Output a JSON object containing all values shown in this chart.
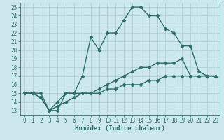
{
  "xlabel": "Humidex (Indice chaleur)",
  "bg_color": "#cce8ec",
  "line_color": "#2d6e6a",
  "grid_color": "#aaccd0",
  "xlim": [
    -0.5,
    23.5
  ],
  "ylim": [
    12.5,
    25.5
  ],
  "xticks": [
    0,
    1,
    2,
    3,
    4,
    5,
    6,
    7,
    8,
    9,
    10,
    11,
    12,
    13,
    14,
    15,
    16,
    17,
    18,
    19,
    20,
    21,
    22,
    23
  ],
  "yticks": [
    13,
    14,
    15,
    16,
    17,
    18,
    19,
    20,
    21,
    22,
    23,
    24,
    25
  ],
  "line1_x": [
    0,
    1,
    2,
    3,
    4,
    5,
    6,
    7,
    8,
    9,
    10,
    11,
    12,
    13,
    14,
    15,
    16,
    17,
    18,
    19,
    20,
    21,
    22,
    23
  ],
  "line1_y": [
    15,
    15,
    15,
    13,
    14,
    15,
    15,
    17,
    21.5,
    20,
    22,
    22,
    23.5,
    25,
    25,
    24,
    24,
    22.5,
    22,
    20.5,
    20.5,
    17.5,
    17,
    17
  ],
  "line2_x": [
    0,
    1,
    2,
    3,
    4,
    5,
    6,
    7,
    8,
    9,
    10,
    11,
    12,
    13,
    14,
    15,
    16,
    17,
    18,
    19,
    20,
    21,
    22,
    23
  ],
  "line2_y": [
    15,
    15,
    14.5,
    13,
    13,
    15,
    15,
    15,
    15,
    15.5,
    16,
    16.5,
    17,
    17.5,
    18,
    18,
    18.5,
    18.5,
    18.5,
    19,
    17,
    17,
    17,
    17
  ],
  "line3_x": [
    0,
    1,
    2,
    3,
    4,
    5,
    6,
    7,
    8,
    9,
    10,
    11,
    12,
    13,
    14,
    15,
    16,
    17,
    18,
    19,
    20,
    21,
    22,
    23
  ],
  "line3_y": [
    15,
    15,
    14.5,
    13,
    13.5,
    14,
    14.5,
    15,
    15,
    15,
    15.5,
    15.5,
    16,
    16,
    16,
    16.5,
    16.5,
    17,
    17,
    17,
    17,
    17,
    17,
    17
  ],
  "marker": "D",
  "markersize": 2.5,
  "linewidth": 1.0,
  "tick_fontsize": 5.5,
  "label_fontsize": 6.5
}
